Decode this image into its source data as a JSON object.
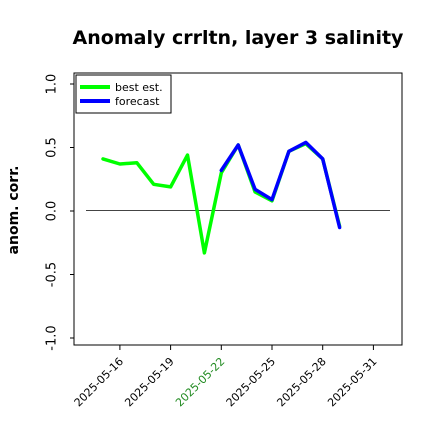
{
  "chart_data": {
    "type": "line",
    "title": "Anomaly crrltn, layer 3 salinity",
    "xlabel": "",
    "ylabel": "anom. corr.",
    "ylim": [
      -1.0,
      1.0
    ],
    "yticks": [
      "1.0",
      "0.5",
      "0.0",
      "-0.5",
      "-1.0"
    ],
    "xticks": [
      "2025-05-16",
      "2025-05-19",
      "2025-05-22",
      "2025-05-25",
      "2025-05-28",
      "2025-05-31"
    ],
    "highlight_tick": "2025-05-22",
    "highlight_color": "#228b22",
    "zero_line": true,
    "grid": false,
    "legend": {
      "placement": "top-left",
      "entries": [
        "best est.",
        "forecast"
      ]
    },
    "series": [
      {
        "name": "best est.",
        "color": "#00ff00",
        "x": [
          "2025-05-15",
          "2025-05-16",
          "2025-05-17",
          "2025-05-18",
          "2025-05-19",
          "2025-05-20",
          "2025-05-21",
          "2025-05-22",
          "2025-05-23",
          "2025-05-24",
          "2025-05-25",
          "2025-05-26",
          "2025-05-27",
          "2025-05-28",
          "2025-05-29"
        ],
        "values": [
          0.41,
          0.37,
          0.38,
          0.21,
          0.19,
          0.44,
          -0.33,
          0.3,
          0.52,
          0.15,
          0.08,
          0.47,
          0.53,
          0.41,
          -0.12
        ]
      },
      {
        "name": "forecast",
        "color": "#0000ff",
        "x": [
          "2025-05-22",
          "2025-05-23",
          "2025-05-24",
          "2025-05-25",
          "2025-05-26",
          "2025-05-27",
          "2025-05-28",
          "2025-05-29"
        ],
        "values": [
          0.32,
          0.52,
          0.17,
          0.09,
          0.47,
          0.54,
          0.41,
          -0.13
        ]
      }
    ]
  }
}
